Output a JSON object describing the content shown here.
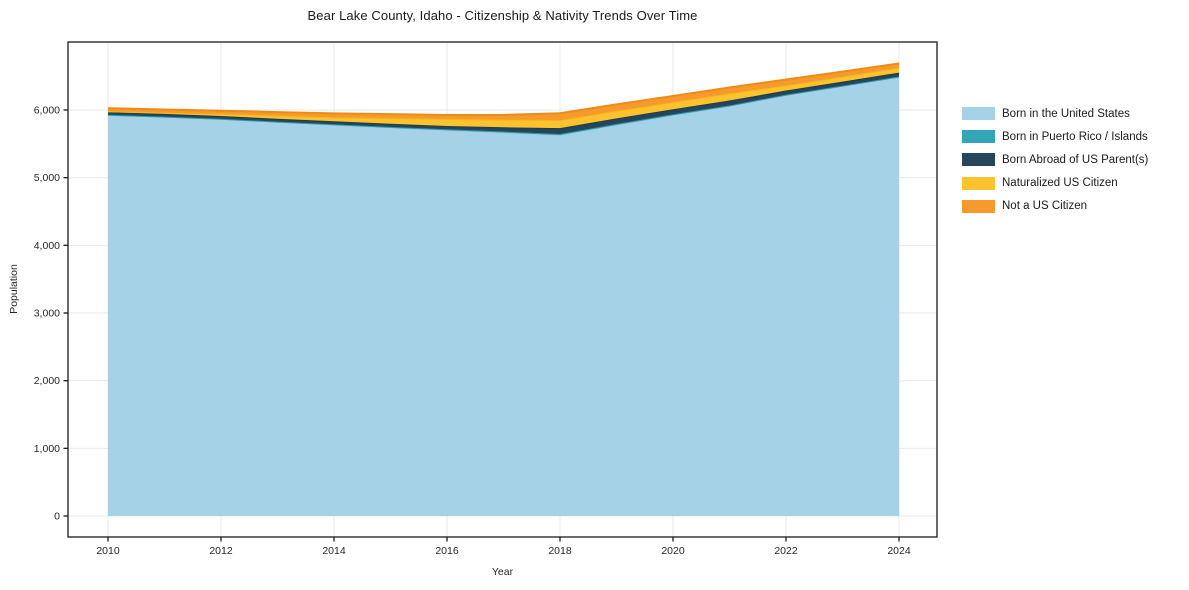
{
  "title": "Bear Lake County, Idaho - Citizenship & Nativity Trends Over Time",
  "chart_data": {
    "type": "area",
    "stacked": true,
    "title": "Bear Lake County, Idaho - Citizenship & Nativity Trends Over Time",
    "xlabel": "Year",
    "ylabel": "Population",
    "legend_position": "right",
    "grid": true,
    "x": [
      2010,
      2011,
      2012,
      2013,
      2014,
      2015,
      2016,
      2017,
      2018,
      2019,
      2020,
      2021,
      2022,
      2023,
      2024
    ],
    "x_ticks": [
      2010,
      2012,
      2014,
      2016,
      2018,
      2020,
      2022,
      2024
    ],
    "y_ticks": [
      0,
      1000,
      2000,
      3000,
      4000,
      5000,
      6000
    ],
    "ylim": [
      -310,
      7010
    ],
    "xlim": [
      2009.3,
      2024.67
    ],
    "series": [
      {
        "name": "Born in the United States",
        "fill": "#a6d2e7",
        "line": "#8ec6e0",
        "values": [
          5925,
          5898,
          5865,
          5822,
          5780,
          5740,
          5703,
          5668,
          5630,
          5780,
          5925,
          6058,
          6220,
          6355,
          6490
        ]
      },
      {
        "name": "Born in Puerto Rico / Islands",
        "fill": "#35a3b8",
        "line": "#2f97ab",
        "values": [
          4,
          4,
          5,
          6,
          8,
          10,
          12,
          14,
          15,
          14,
          12,
          10,
          8,
          6,
          5
        ]
      },
      {
        "name": "Born Abroad of US Parent(s)",
        "fill": "#25455a",
        "line": "#1e3c50",
        "values": [
          38,
          40,
          42,
          44,
          45,
          46,
          48,
          62,
          88,
          82,
          75,
          73,
          60,
          58,
          58
        ]
      },
      {
        "name": "Naturalized US Citizen",
        "fill": "#fcc32f",
        "line": "#f3b71d",
        "values": [
          15,
          20,
          30,
          45,
          60,
          85,
          105,
          112,
          118,
          112,
          105,
          104,
          75,
          74,
          74
        ]
      },
      {
        "name": "Not a US Citizen",
        "fill": "#f79a2d",
        "line": "#ee8b15",
        "values": [
          45,
          46,
          48,
          52,
          57,
          58,
          58,
          72,
          100,
          95,
          90,
          88,
          88,
          74,
          60
        ]
      }
    ],
    "colors": {
      "grid": "#e9e9e9",
      "axis": "#1a1a1a",
      "tick_text": "#262626"
    }
  }
}
